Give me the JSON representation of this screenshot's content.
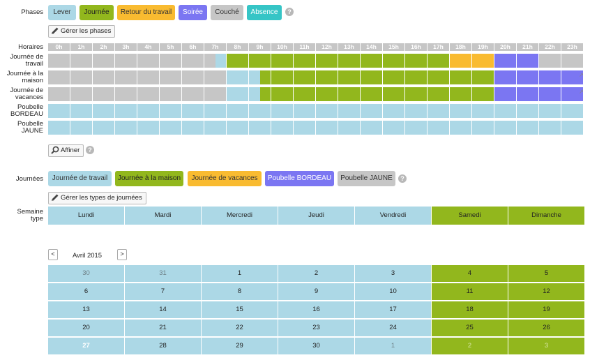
{
  "colors": {
    "lever": "#acd8e6",
    "journee": "#92b71d",
    "retour": "#f9bb30",
    "soiree": "#7b76f2",
    "couche": "#c6c6c6",
    "absence": "#36c5c6"
  },
  "phases": {
    "label": "Phases",
    "chips": [
      {
        "label": "Lever",
        "key": "lever",
        "text_color": "#333"
      },
      {
        "label": "Journée",
        "key": "journee",
        "text_color": "#222"
      },
      {
        "label": "Retour du travail",
        "key": "retour",
        "text_color": "#333"
      },
      {
        "label": "Soirée",
        "key": "soiree",
        "text_color": "#fff"
      },
      {
        "label": "Couché",
        "key": "couche",
        "text_color": "#333"
      },
      {
        "label": "Absence",
        "key": "absence",
        "text_color": "#fff"
      }
    ],
    "manage_button": "Gérer les phases",
    "help_icon": "?"
  },
  "schedule": {
    "header_label": "Horaires",
    "hours": [
      "0h",
      "1h",
      "2h",
      "3h",
      "4h",
      "5h",
      "6h",
      "7h",
      "8h",
      "9h",
      "10h",
      "11h",
      "12h",
      "13h",
      "14h",
      "15h",
      "16h",
      "17h",
      "18h",
      "19h",
      "20h",
      "21h",
      "22h",
      "23h"
    ],
    "rows": [
      {
        "label_lines": [
          "Journée de",
          "travail"
        ],
        "segments": [
          {
            "start": 0,
            "end": 7.5,
            "phase": "couche"
          },
          {
            "start": 7.5,
            "end": 8,
            "phase": "lever"
          },
          {
            "start": 8,
            "end": 18,
            "phase": "journee"
          },
          {
            "start": 18,
            "end": 20,
            "phase": "retour"
          },
          {
            "start": 20,
            "end": 22,
            "phase": "soiree"
          },
          {
            "start": 22,
            "end": 24,
            "phase": "couche"
          }
        ]
      },
      {
        "label_lines": [
          "Journée à la",
          "maison"
        ],
        "segments": [
          {
            "start": 0,
            "end": 8,
            "phase": "couche"
          },
          {
            "start": 8,
            "end": 9.5,
            "phase": "lever"
          },
          {
            "start": 9.5,
            "end": 20,
            "phase": "journee"
          },
          {
            "start": 20,
            "end": 24,
            "phase": "soiree"
          }
        ]
      },
      {
        "label_lines": [
          "Journée de",
          "vacances"
        ],
        "segments": [
          {
            "start": 0,
            "end": 8,
            "phase": "couche"
          },
          {
            "start": 8,
            "end": 9.5,
            "phase": "lever"
          },
          {
            "start": 9.5,
            "end": 20,
            "phase": "journee"
          },
          {
            "start": 20,
            "end": 24,
            "phase": "soiree"
          }
        ]
      },
      {
        "label_lines": [
          "Poubelle",
          "BORDEAU"
        ],
        "segments": [
          {
            "start": 0,
            "end": 24,
            "phase": "lever"
          }
        ]
      },
      {
        "label_lines": [
          "Poubelle",
          "JAUNE"
        ],
        "segments": [
          {
            "start": 0,
            "end": 24,
            "phase": "lever"
          }
        ]
      }
    ],
    "refine_button": "Affiner"
  },
  "journees": {
    "label": "Journées",
    "chips": [
      {
        "label": "Journée de travail",
        "color": "#acd8e6",
        "text_color": "#333"
      },
      {
        "label": "Journée à la maison",
        "color": "#92b71d",
        "text_color": "#222"
      },
      {
        "label": "Journée de vacances",
        "color": "#f9bb30",
        "text_color": "#333"
      },
      {
        "label": "Poubelle BORDEAU",
        "color": "#7b76f2",
        "text_color": "#fff"
      },
      {
        "label": "Poubelle JAUNE",
        "color": "#c6c6c6",
        "text_color": "#333"
      }
    ],
    "manage_button": "Gérer les types de journées"
  },
  "week": {
    "label_lines": [
      "Semaine",
      "type"
    ],
    "days": [
      {
        "label": "Lundi",
        "type": "lever"
      },
      {
        "label": "Mardi",
        "type": "lever"
      },
      {
        "label": "Mercredi",
        "type": "lever"
      },
      {
        "label": "Jeudi",
        "type": "lever"
      },
      {
        "label": "Vendredi",
        "type": "lever"
      },
      {
        "label": "Samedi",
        "type": "journee"
      },
      {
        "label": "Dimanche",
        "type": "journee"
      }
    ]
  },
  "calendar": {
    "month_label": "Avril 2015",
    "prev_label": "<",
    "next_label": ">",
    "weeks": [
      [
        {
          "d": "30",
          "o": true
        },
        {
          "d": "31",
          "o": true
        },
        {
          "d": "1"
        },
        {
          "d": "2"
        },
        {
          "d": "3"
        },
        {
          "d": "4"
        },
        {
          "d": "5"
        }
      ],
      [
        {
          "d": "6"
        },
        {
          "d": "7"
        },
        {
          "d": "8"
        },
        {
          "d": "9"
        },
        {
          "d": "10"
        },
        {
          "d": "11"
        },
        {
          "d": "12"
        }
      ],
      [
        {
          "d": "13"
        },
        {
          "d": "14"
        },
        {
          "d": "15"
        },
        {
          "d": "16"
        },
        {
          "d": "17"
        },
        {
          "d": "18"
        },
        {
          "d": "19"
        }
      ],
      [
        {
          "d": "20"
        },
        {
          "d": "21"
        },
        {
          "d": "22"
        },
        {
          "d": "23"
        },
        {
          "d": "24"
        },
        {
          "d": "25"
        },
        {
          "d": "26"
        }
      ],
      [
        {
          "d": "27",
          "today": true
        },
        {
          "d": "28"
        },
        {
          "d": "29"
        },
        {
          "d": "30"
        },
        {
          "d": "1",
          "o": true
        },
        {
          "d": "2",
          "o": true
        },
        {
          "d": "3",
          "o": true
        }
      ]
    ]
  }
}
